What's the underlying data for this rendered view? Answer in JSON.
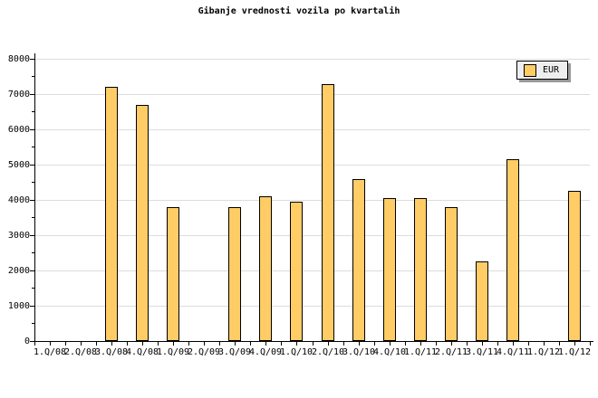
{
  "title": "Gibanje vrednosti vozila po kvartalih",
  "legend": {
    "label": "EUR"
  },
  "colors": {
    "bar_fill": "#FFCC66",
    "bar_border": "#000000",
    "gridline": "#DCDCDC",
    "axis": "#000000",
    "legend_bg": "#EEEEEE",
    "legend_shadow": "#999999",
    "background": "#FFFFFF",
    "text": "#000000"
  },
  "chart_data": {
    "type": "bar",
    "title": "Gibanje vrednosti vozila po kvartalih",
    "categories": [
      "1.Q/08",
      "2.Q/08",
      "3.Q/08",
      "4.Q/08",
      "1.Q/09",
      "2.Q/09",
      "3.Q/09",
      "4.Q/09",
      "1.Q/10",
      "2.Q/10",
      "3.Q/10",
      "4.Q/10",
      "1.Q/11",
      "2.Q/11",
      "3.Q/11",
      "4.Q/11",
      "1.Q/12",
      "1.Q/12"
    ],
    "series": [
      {
        "name": "EUR",
        "values": [
          null,
          null,
          7200,
          6700,
          3800,
          null,
          3800,
          4100,
          3950,
          7270,
          4600,
          4050,
          4050,
          3800,
          2250,
          5150,
          null,
          4250
        ]
      }
    ],
    "xlabel": "",
    "ylabel": "",
    "ylim": [
      0,
      8000
    ],
    "yticks": [
      0,
      1000,
      2000,
      3000,
      4000,
      5000,
      6000,
      7000,
      8000
    ],
    "ytick_minor_step": 500,
    "grid": true,
    "legend_position": "top-right"
  }
}
